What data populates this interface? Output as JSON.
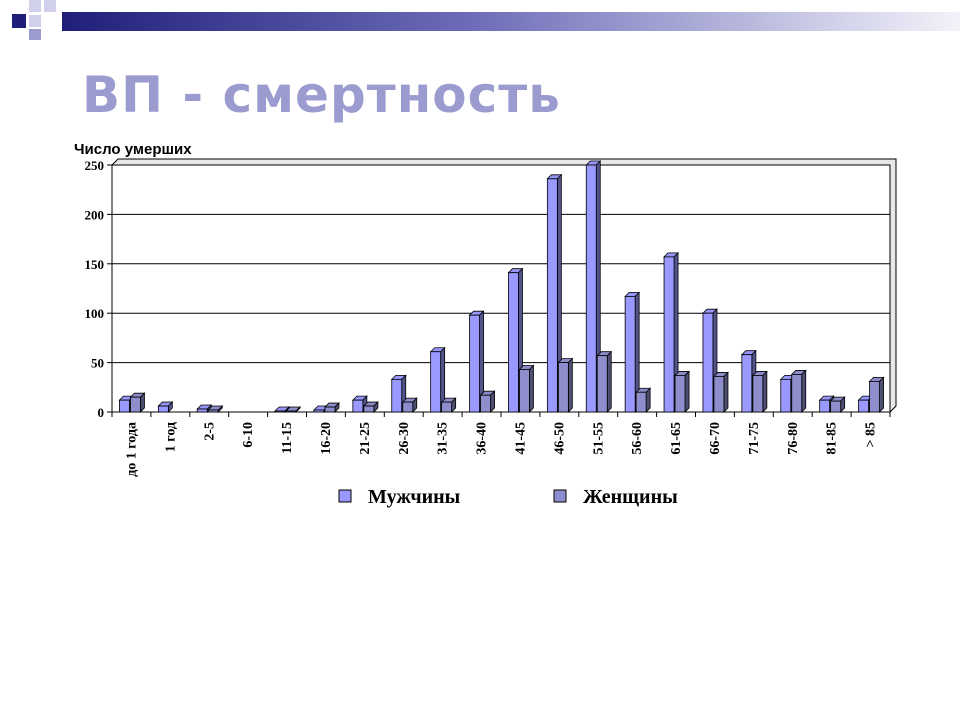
{
  "slide": {
    "title": "ВП - смертность"
  },
  "colors": {
    "men": "#9999ff",
    "women": "#8e8ecc",
    "top_bar_dark": "#1f1f7a",
    "top_bar_light": "#e8e8f4",
    "title": "#9b9bd0"
  },
  "chart_data": {
    "type": "bar",
    "title": "",
    "ylabel": "Число умерших",
    "xlabel": "",
    "ylim": [
      0,
      250
    ],
    "yticks": [
      "0",
      "50",
      "100",
      "150",
      "200",
      "250"
    ],
    "grid": true,
    "legend": "bottom",
    "categories": [
      "до 1 года",
      "1 год",
      "2-5",
      "6-10",
      "11-15",
      "16-20",
      "21-25",
      "26-30",
      "31-35",
      "36-40",
      "41-45",
      "46-50",
      "51-55",
      "56-60",
      "61-65",
      "66-70",
      "71-75",
      "76-80",
      "81-85",
      "> 85"
    ],
    "series": [
      {
        "name": "Мужчины",
        "values": [
          12,
          6,
          3,
          0,
          1,
          2,
          12,
          33,
          61,
          98,
          141,
          236,
          250,
          117,
          157,
          100,
          58,
          33,
          12,
          12
        ]
      },
      {
        "name": "Женщины",
        "values": [
          15,
          0,
          2,
          0,
          1,
          5,
          6,
          10,
          10,
          17,
          43,
          50,
          57,
          20,
          37,
          36,
          37,
          38,
          11,
          31
        ]
      }
    ]
  }
}
